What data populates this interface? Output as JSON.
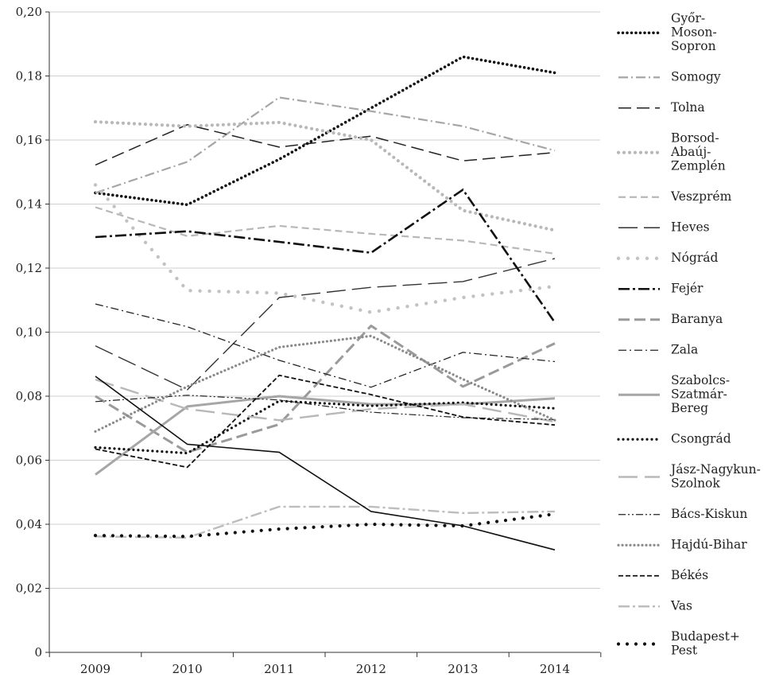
{
  "chart_data": {
    "type": "line",
    "title": "",
    "xlabel": "",
    "ylabel": "",
    "x": [
      "2009",
      "2010",
      "2011",
      "2012",
      "2013",
      "2014"
    ],
    "ylim": [
      0,
      0.2
    ],
    "yticks": [
      "0",
      "0,02",
      "0,04",
      "0,06",
      "0,08",
      "0,10",
      "0,12",
      "0,14",
      "0,16",
      "0,18",
      "0,20"
    ],
    "grid": "horizontal",
    "legend_position": "right",
    "series": [
      {
        "name": "Győr-Moson-Sopron",
        "label_lines": [
          "Győr-",
          "Moson-",
          "Sopron"
        ],
        "color": "#111111",
        "style": "bold-dotted",
        "values": [
          0.1435,
          0.1398,
          0.154,
          0.17,
          0.186,
          0.181
        ]
      },
      {
        "name": "Somogy",
        "label_lines": [
          "Somogy"
        ],
        "color": "#a6a6a6",
        "style": "dash-dot",
        "values": [
          0.1435,
          0.1532,
          0.1733,
          0.169,
          0.1643,
          0.1567
        ]
      },
      {
        "name": "Tolna",
        "label_lines": [
          "Tolna"
        ],
        "color": "#222222",
        "style": "dashed",
        "values": [
          0.1522,
          0.1648,
          0.1578,
          0.1612,
          0.1535,
          0.1561
        ]
      },
      {
        "name": "Borsod-Abaúj-Zemplén",
        "label_lines": [
          "Borsod-",
          "Abaúj-",
          "Zemplén"
        ],
        "color": "#b8b8b8",
        "style": "dotted-round",
        "values": [
          0.1657,
          0.1643,
          0.1655,
          0.16,
          0.138,
          0.1318
        ]
      },
      {
        "name": "Veszprém",
        "label_lines": [
          "Veszprém"
        ],
        "color": "#b8b8b8",
        "style": "dashed-light",
        "values": [
          0.139,
          0.13,
          0.1332,
          0.1307,
          0.1286,
          0.1245
        ]
      },
      {
        "name": "Heves",
        "label_lines": [
          "Heves"
        ],
        "color": "#333333",
        "style": "long-dash",
        "values": [
          0.0957,
          0.082,
          0.1108,
          0.114,
          0.1158,
          0.123
        ]
      },
      {
        "name": "Nógrád",
        "label_lines": [
          "Nógrád"
        ],
        "color": "#c2c2c2",
        "style": "sparse-dots",
        "values": [
          0.146,
          0.113,
          0.1122,
          0.1062,
          0.1108,
          0.1143
        ]
      },
      {
        "name": "Fejér",
        "label_lines": [
          "Fejér"
        ],
        "color": "#111111",
        "style": "bold-dash-dot",
        "values": [
          0.1297,
          0.1315,
          0.1282,
          0.1248,
          0.1445,
          0.103
        ]
      },
      {
        "name": "Baranya",
        "label_lines": [
          "Baranya"
        ],
        "color": "#9a9a9a",
        "style": "bold-dashed",
        "values": [
          0.08,
          0.0625,
          0.0712,
          0.102,
          0.083,
          0.0965
        ]
      },
      {
        "name": "Zala",
        "label_lines": [
          "Zala"
        ],
        "color": "#222222",
        "style": "dash-dot-thin",
        "values": [
          0.1088,
          0.1017,
          0.0912,
          0.0828,
          0.0937,
          0.0908
        ]
      },
      {
        "name": "Szabolcs-Szatmár-Bereg",
        "label_lines": [
          "Szabolcs-",
          "Szatmár-",
          "Bereg"
        ],
        "color": "#a6a6a6",
        "style": "solid-thick",
        "values": [
          0.0555,
          0.0768,
          0.08,
          0.0775,
          0.0775,
          0.0793
        ]
      },
      {
        "name": "Csongrád",
        "label_lines": [
          "Csongrád"
        ],
        "color": "#111111",
        "style": "dotted",
        "values": [
          0.064,
          0.0622,
          0.0785,
          0.077,
          0.078,
          0.0762
        ]
      },
      {
        "name": "Jász-Nagykun-Szolnok",
        "label_lines": [
          "Jász-Nagykun-",
          "Szolnok"
        ],
        "color": "#b8b8b8",
        "style": "long-dash-light",
        "values": [
          0.0852,
          0.076,
          0.0725,
          0.076,
          0.0775,
          0.072
        ]
      },
      {
        "name": "Bács-Kiskun",
        "label_lines": [
          "Bács-Kiskun"
        ],
        "color": "#222222",
        "style": "dash-dot-dot",
        "values": [
          0.0783,
          0.0803,
          0.0788,
          0.075,
          0.0733,
          0.0727
        ]
      },
      {
        "name": "Hajdú-Bihar",
        "label_lines": [
          "Hajdú-Bihar"
        ],
        "color": "#8a8a8a",
        "style": "dotted-gray",
        "values": [
          0.069,
          0.083,
          0.0953,
          0.0988,
          0.0853,
          0.0725
        ]
      },
      {
        "name": "Békés",
        "label_lines": [
          "Békés"
        ],
        "color": "#111111",
        "style": "short-dash",
        "values": [
          0.0635,
          0.0578,
          0.0865,
          0.0805,
          0.0735,
          0.071
        ]
      },
      {
        "name": "Vas",
        "label_lines": [
          "Vas"
        ],
        "color": "#bdbdbd",
        "style": "dash-dot-light",
        "values": [
          0.0362,
          0.0358,
          0.0455,
          0.0455,
          0.0435,
          0.044
        ]
      },
      {
        "name": "Budapest+Pest",
        "label_lines": [
          "Budapest+",
          "Pest"
        ],
        "color": "#111111",
        "style": "sparse-dots-dark",
        "values": [
          0.0365,
          0.0362,
          0.0385,
          0.04,
          0.0395,
          0.0432
        ]
      },
      {
        "name": "",
        "label_lines": [],
        "color": "#111111",
        "style": "solid",
        "values": [
          0.0862,
          0.065,
          0.0625,
          0.044,
          0.0395,
          0.032
        ]
      }
    ]
  }
}
